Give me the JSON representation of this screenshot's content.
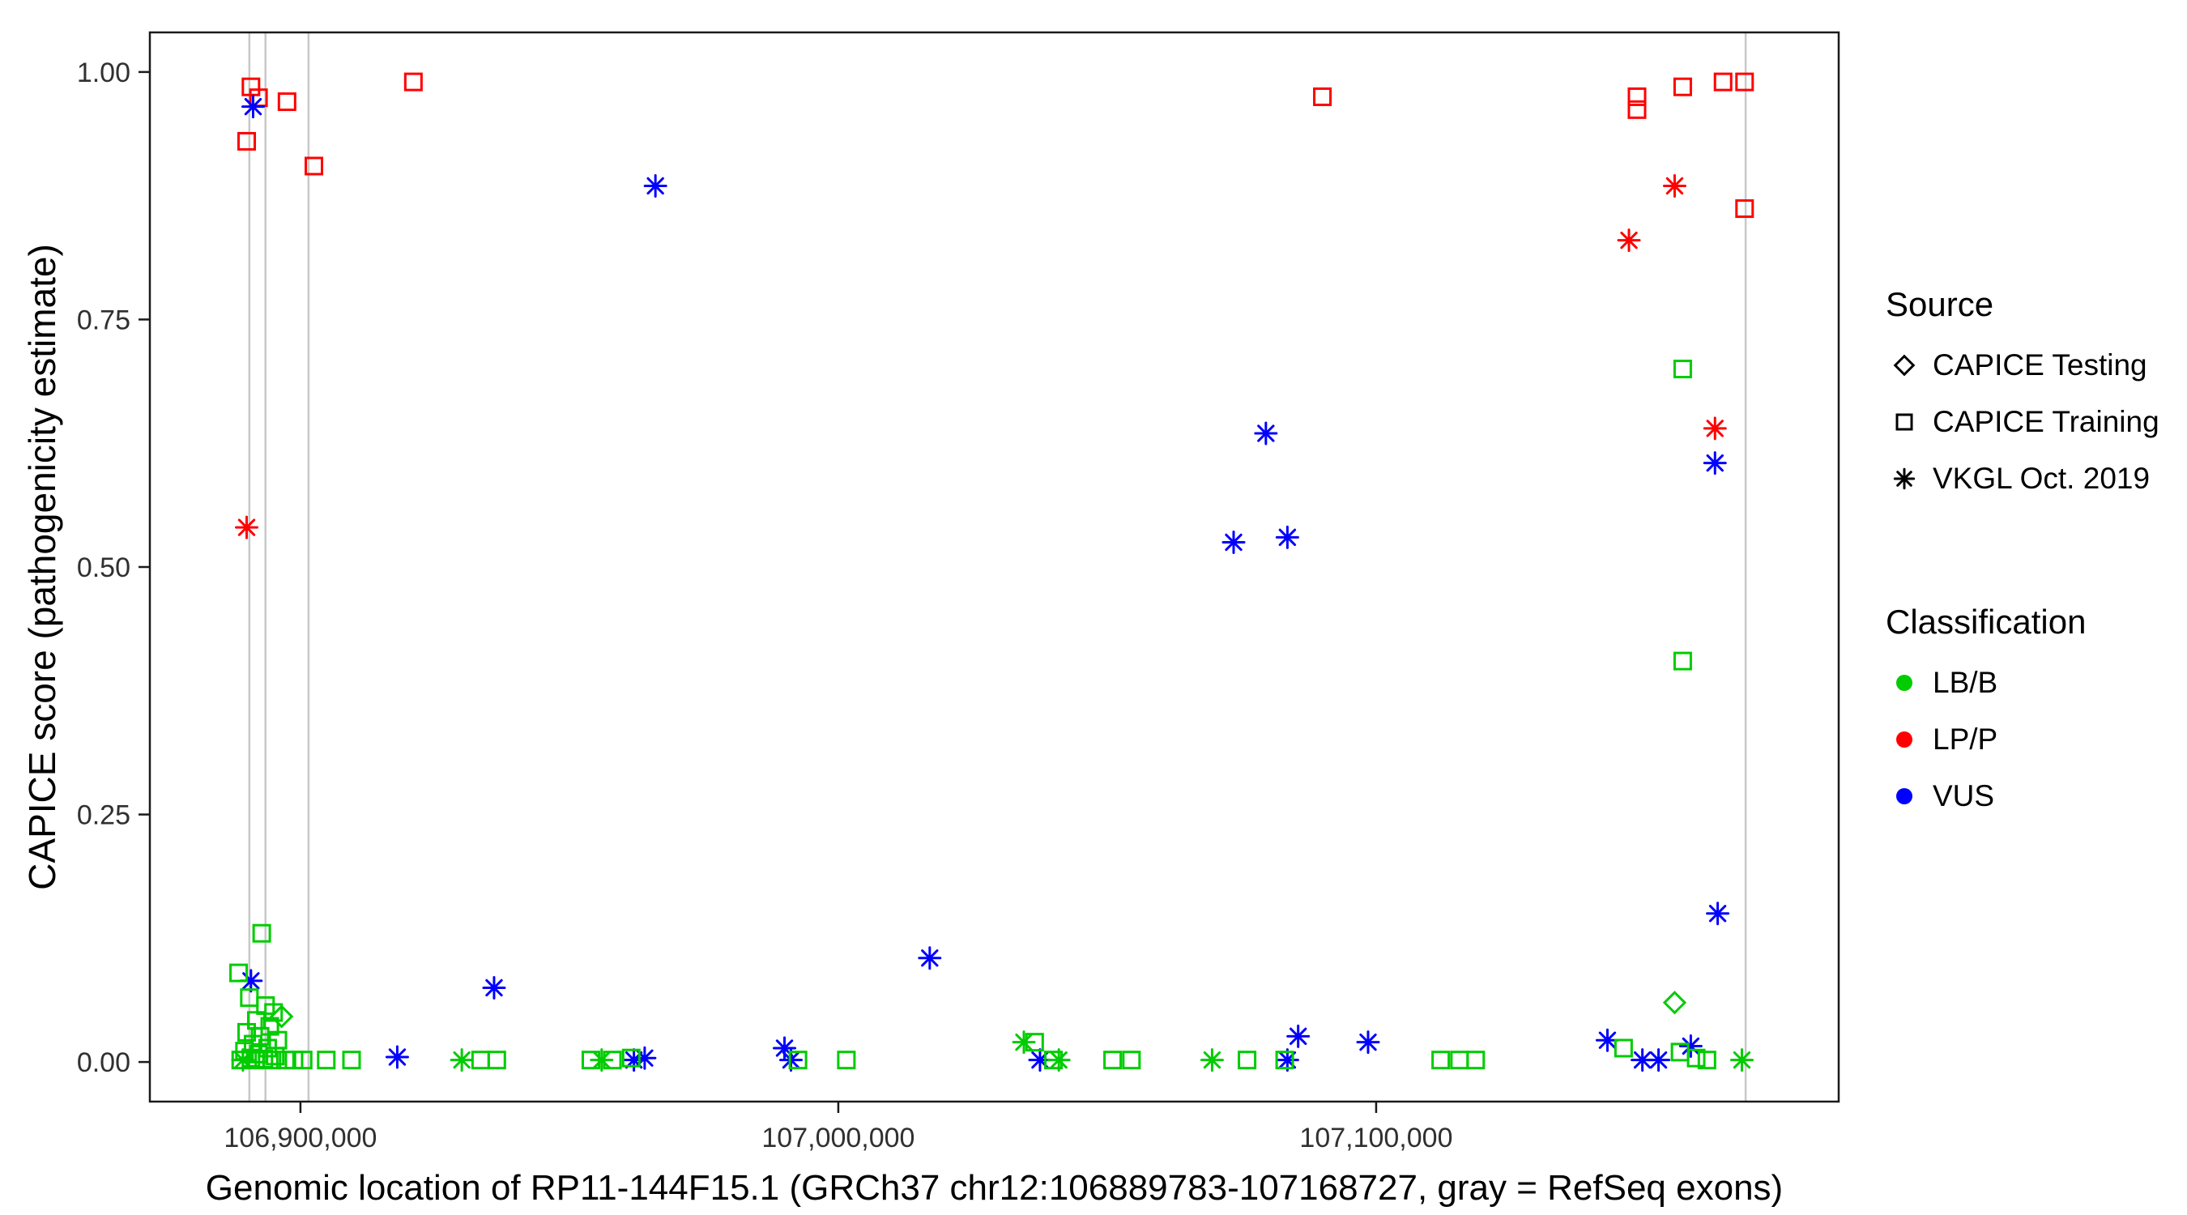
{
  "figure": {
    "x_axis_title": "Genomic location of RP11-144F15.1 (GRCh37 chr12:106889783-107168727, gray = RefSeq exons)",
    "y_axis_title": "CAPICE score (pathogenicity estimate)"
  },
  "legend": {
    "source": {
      "title": "Source",
      "items": [
        {
          "label": "CAPICE Testing",
          "shape": "diamond",
          "color": "#000000"
        },
        {
          "label": "CAPICE Training",
          "shape": "square",
          "color": "#000000"
        },
        {
          "label": "VKGL Oct. 2019",
          "shape": "asterisk",
          "color": "#000000"
        }
      ]
    },
    "classification": {
      "title": "Classification",
      "items": [
        {
          "label": "LB/B",
          "shape": "circle",
          "color": "#00CC00"
        },
        {
          "label": "LP/P",
          "shape": "circle",
          "color": "#FF0000"
        },
        {
          "label": "VUS",
          "shape": "circle",
          "color": "#0000FF"
        }
      ]
    }
  },
  "chart_data": {
    "type": "scatter",
    "title": "",
    "xlabel": "Genomic location of RP11-144F15.1 (GRCh37 chr12:106889783-107168727, gray = RefSeq exons)",
    "ylabel": "CAPICE score (pathogenicity estimate)",
    "x_domain": [
      106872000,
      107186000
    ],
    "y_domain": [
      -0.04,
      1.04
    ],
    "x_ticks": [
      {
        "value": 106900000,
        "label": "106,900,000"
      },
      {
        "value": 107000000,
        "label": "107,000,000"
      },
      {
        "value": 107100000,
        "label": "107,100,000"
      }
    ],
    "y_ticks": [
      {
        "value": 0.0,
        "label": "0.00"
      },
      {
        "value": 0.25,
        "label": "0.25"
      },
      {
        "value": 0.5,
        "label": "0.50"
      },
      {
        "value": 0.75,
        "label": "0.75"
      },
      {
        "value": 1.0,
        "label": "1.00"
      }
    ],
    "exon_lines": {
      "color": "#C8C8C8",
      "note": "gray = RefSeq exons",
      "positions": [
        106890500,
        106893500,
        106901500,
        107168700
      ]
    },
    "shape_map": {
      "test": "diamond",
      "train": "square",
      "vkgl": "asterisk"
    },
    "source_names": {
      "test": "CAPICE Testing",
      "train": "CAPICE Training",
      "vkgl": "VKGL Oct. 2019"
    },
    "color_map": {
      "LB/B": "#00CC00",
      "LP/P": "#FF0000",
      "VUS": "#0000FF"
    },
    "points": [
      [
        106890000,
        0.93,
        "train",
        "LP/P"
      ],
      [
        106890800,
        0.985,
        "train",
        "LP/P"
      ],
      [
        106892200,
        0.974,
        "train",
        "LP/P"
      ],
      [
        106897500,
        0.97,
        "train",
        "LP/P"
      ],
      [
        106902500,
        0.905,
        "train",
        "LP/P"
      ],
      [
        106921000,
        0.99,
        "train",
        "LP/P"
      ],
      [
        107090000,
        0.975,
        "train",
        "LP/P"
      ],
      [
        107148500,
        0.975,
        "train",
        "LP/P"
      ],
      [
        107148500,
        0.962,
        "train",
        "LP/P"
      ],
      [
        107157000,
        0.985,
        "train",
        "LP/P"
      ],
      [
        107164500,
        0.99,
        "train",
        "LP/P"
      ],
      [
        107168500,
        0.99,
        "train",
        "LP/P"
      ],
      [
        107168500,
        0.862,
        "train",
        "LP/P"
      ],
      [
        106890000,
        0.54,
        "vkgl",
        "LP/P"
      ],
      [
        107147000,
        0.83,
        "vkgl",
        "LP/P"
      ],
      [
        107155500,
        0.885,
        "vkgl",
        "LP/P"
      ],
      [
        107163000,
        0.64,
        "vkgl",
        "LP/P"
      ],
      [
        106891200,
        0.965,
        "vkgl",
        "VUS"
      ],
      [
        106966000,
        0.885,
        "vkgl",
        "VUS"
      ],
      [
        107079500,
        0.635,
        "vkgl",
        "VUS"
      ],
      [
        107073500,
        0.525,
        "vkgl",
        "VUS"
      ],
      [
        107083500,
        0.53,
        "vkgl",
        "VUS"
      ],
      [
        107163000,
        0.605,
        "vkgl",
        "VUS"
      ],
      [
        107163500,
        0.15,
        "vkgl",
        "VUS"
      ],
      [
        106890800,
        0.082,
        "vkgl",
        "VUS"
      ],
      [
        106936000,
        0.075,
        "vkgl",
        "VUS"
      ],
      [
        107017000,
        0.105,
        "vkgl",
        "VUS"
      ],
      [
        106918000,
        0.005,
        "vkgl",
        "VUS"
      ],
      [
        106962000,
        0.002,
        "vkgl",
        "VUS"
      ],
      [
        106964000,
        0.004,
        "vkgl",
        "VUS"
      ],
      [
        106990000,
        0.014,
        "vkgl",
        "VUS"
      ],
      [
        106991200,
        0.002,
        "vkgl",
        "VUS"
      ],
      [
        107037500,
        0.002,
        "vkgl",
        "VUS"
      ],
      [
        107083500,
        0.002,
        "vkgl",
        "VUS"
      ],
      [
        107085500,
        0.026,
        "vkgl",
        "VUS"
      ],
      [
        107098500,
        0.02,
        "vkgl",
        "VUS"
      ],
      [
        107143000,
        0.022,
        "vkgl",
        "VUS"
      ],
      [
        107149500,
        0.002,
        "vkgl",
        "VUS"
      ],
      [
        107152500,
        0.002,
        "vkgl",
        "VUS"
      ],
      [
        107158500,
        0.016,
        "vkgl",
        "VUS"
      ],
      [
        106896500,
        0.046,
        "test",
        "LB/B"
      ],
      [
        107155500,
        0.06,
        "test",
        "LB/B"
      ],
      [
        107157000,
        0.7,
        "train",
        "LB/B"
      ],
      [
        107157000,
        0.405,
        "train",
        "LB/B"
      ],
      [
        106888500,
        0.09,
        "train",
        "LB/B"
      ],
      [
        106892800,
        0.13,
        "train",
        "LB/B"
      ],
      [
        106890500,
        0.065,
        "train",
        "LB/B"
      ],
      [
        106893500,
        0.057,
        "train",
        "LB/B"
      ],
      [
        106895000,
        0.05,
        "train",
        "LB/B"
      ],
      [
        106891800,
        0.042,
        "train",
        "LB/B"
      ],
      [
        106894300,
        0.036,
        "train",
        "LB/B"
      ],
      [
        106890000,
        0.03,
        "train",
        "LB/B"
      ],
      [
        106892500,
        0.026,
        "train",
        "LB/B"
      ],
      [
        106895800,
        0.022,
        "train",
        "LB/B"
      ],
      [
        106891200,
        0.018,
        "train",
        "LB/B"
      ],
      [
        106893900,
        0.014,
        "train",
        "LB/B"
      ],
      [
        106889600,
        0.011,
        "train",
        "LB/B"
      ],
      [
        106892200,
        0.008,
        "train",
        "LB/B"
      ],
      [
        106895300,
        0.006,
        "train",
        "LB/B"
      ],
      [
        106890800,
        0.004,
        "train",
        "LB/B"
      ],
      [
        106893200,
        0.003,
        "train",
        "LB/B"
      ],
      [
        106888900,
        0.002,
        "train",
        "LB/B"
      ],
      [
        106891600,
        0.002,
        "train",
        "LB/B"
      ],
      [
        106894700,
        0.002,
        "train",
        "LB/B"
      ],
      [
        106897200,
        0.002,
        "train",
        "LB/B"
      ],
      [
        106898800,
        0.002,
        "train",
        "LB/B"
      ],
      [
        106900500,
        0.002,
        "train",
        "LB/B"
      ],
      [
        106904800,
        0.002,
        "train",
        "LB/B"
      ],
      [
        106909500,
        0.002,
        "train",
        "LB/B"
      ],
      [
        106933500,
        0.002,
        "train",
        "LB/B"
      ],
      [
        106936500,
        0.002,
        "train",
        "LB/B"
      ],
      [
        106954000,
        0.002,
        "train",
        "LB/B"
      ],
      [
        106958000,
        0.002,
        "train",
        "LB/B"
      ],
      [
        106961500,
        0.004,
        "train",
        "LB/B"
      ],
      [
        106992500,
        0.002,
        "train",
        "LB/B"
      ],
      [
        107001500,
        0.002,
        "train",
        "LB/B"
      ],
      [
        107036500,
        0.02,
        "train",
        "LB/B"
      ],
      [
        107040000,
        0.002,
        "train",
        "LB/B"
      ],
      [
        107051000,
        0.002,
        "train",
        "LB/B"
      ],
      [
        107054500,
        0.002,
        "train",
        "LB/B"
      ],
      [
        107076000,
        0.002,
        "train",
        "LB/B"
      ],
      [
        107083000,
        0.002,
        "train",
        "LB/B"
      ],
      [
        107112000,
        0.002,
        "train",
        "LB/B"
      ],
      [
        107115500,
        0.002,
        "train",
        "LB/B"
      ],
      [
        107118500,
        0.002,
        "train",
        "LB/B"
      ],
      [
        107146000,
        0.014,
        "train",
        "LB/B"
      ],
      [
        107156500,
        0.01,
        "train",
        "LB/B"
      ],
      [
        107159500,
        0.004,
        "train",
        "LB/B"
      ],
      [
        107161500,
        0.002,
        "train",
        "LB/B"
      ],
      [
        106889300,
        0.002,
        "vkgl",
        "LB/B"
      ],
      [
        106930000,
        0.002,
        "vkgl",
        "LB/B"
      ],
      [
        106956000,
        0.002,
        "vkgl",
        "LB/B"
      ],
      [
        107034500,
        0.02,
        "vkgl",
        "LB/B"
      ],
      [
        107041000,
        0.002,
        "vkgl",
        "LB/B"
      ],
      [
        107069500,
        0.002,
        "vkgl",
        "LB/B"
      ],
      [
        107168000,
        0.002,
        "vkgl",
        "LB/B"
      ]
    ]
  }
}
